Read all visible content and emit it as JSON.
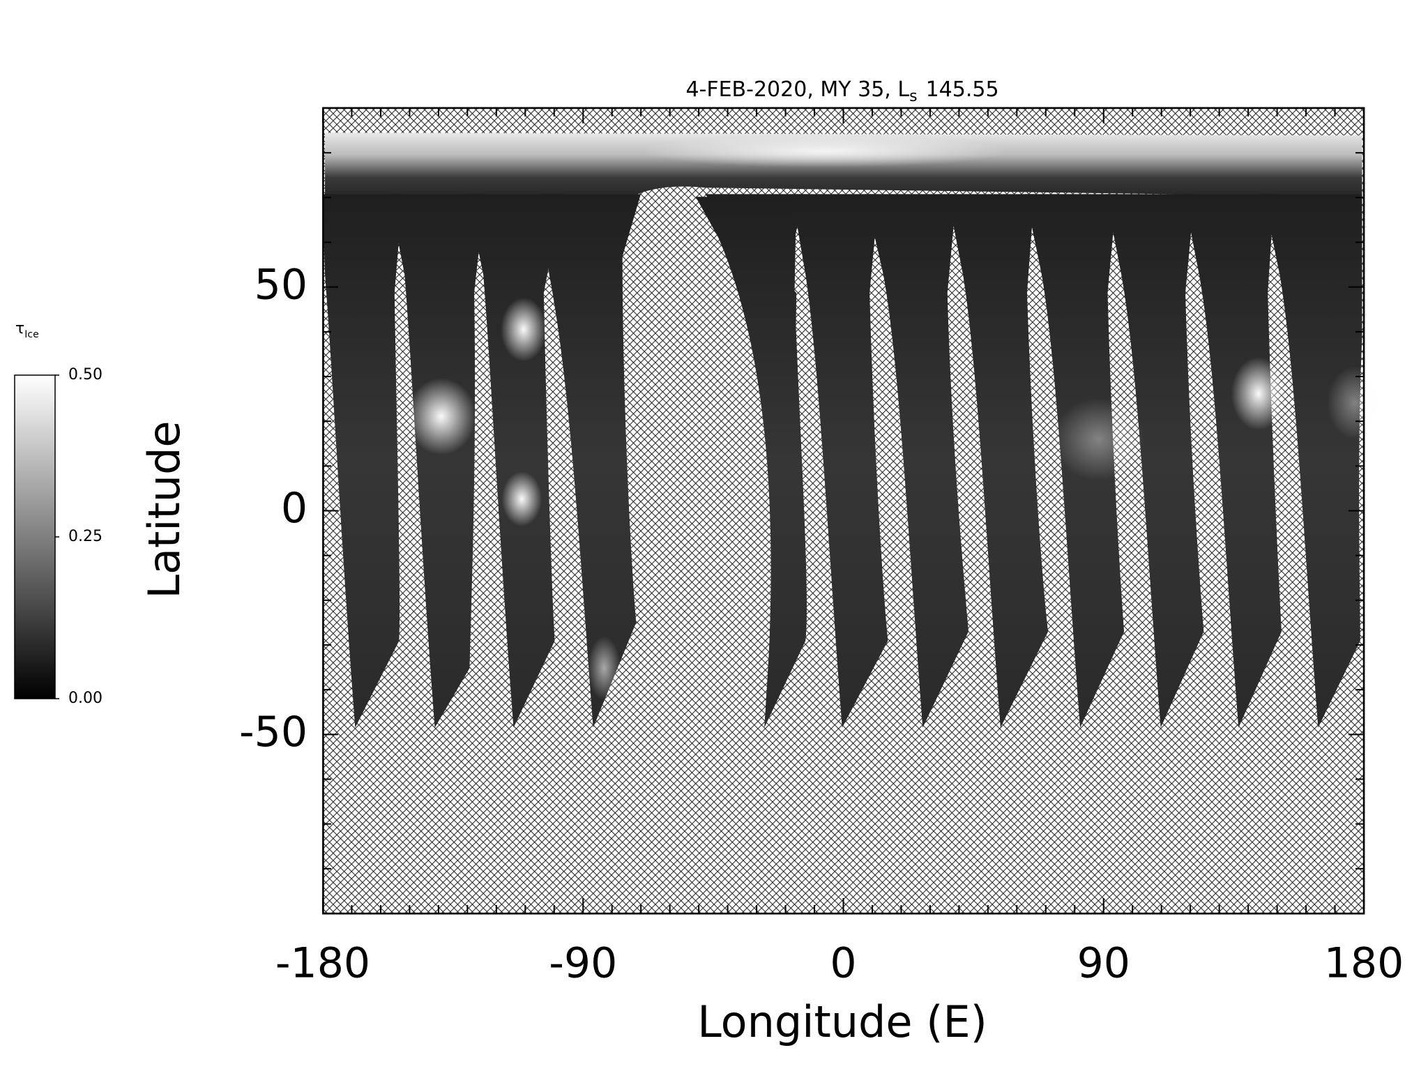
{
  "chart_data": {
    "type": "map",
    "title": {
      "main": "4-FEB-2020, MY 35,  L",
      "subscript": "s",
      "value": "145.55"
    },
    "xlabel": "Longitude (E)",
    "ylabel": "Latitude",
    "xlim": [
      -180,
      180
    ],
    "xticks": [
      -180,
      -90,
      0,
      90,
      180
    ],
    "xminorticks": [
      -170,
      -160,
      -150,
      -140,
      -130,
      -120,
      -110,
      -100,
      -80,
      -70,
      -60,
      -50,
      -40,
      -30,
      -20,
      -10,
      10,
      20,
      30,
      40,
      50,
      60,
      70,
      80,
      100,
      110,
      120,
      130,
      140,
      150,
      160,
      170
    ],
    "ylim": [
      -90,
      90
    ],
    "yticks": [
      -50,
      0,
      50
    ],
    "yminorticks": [
      -80,
      -70,
      -60,
      -40,
      -30,
      -20,
      -10,
      10,
      20,
      30,
      40,
      60,
      70,
      80
    ],
    "colorbar": {
      "label": "τ",
      "label_subscript": "Ice",
      "lim": [
        0,
        0.5
      ],
      "ticks": [
        {
          "value": 0,
          "label": "0.00"
        },
        {
          "value": 0.25,
          "label": "0.25"
        },
        {
          "value": 0.5,
          "label": "0.50"
        }
      ],
      "colors": [
        "#000000",
        "#ffffff"
      ]
    }
  }
}
